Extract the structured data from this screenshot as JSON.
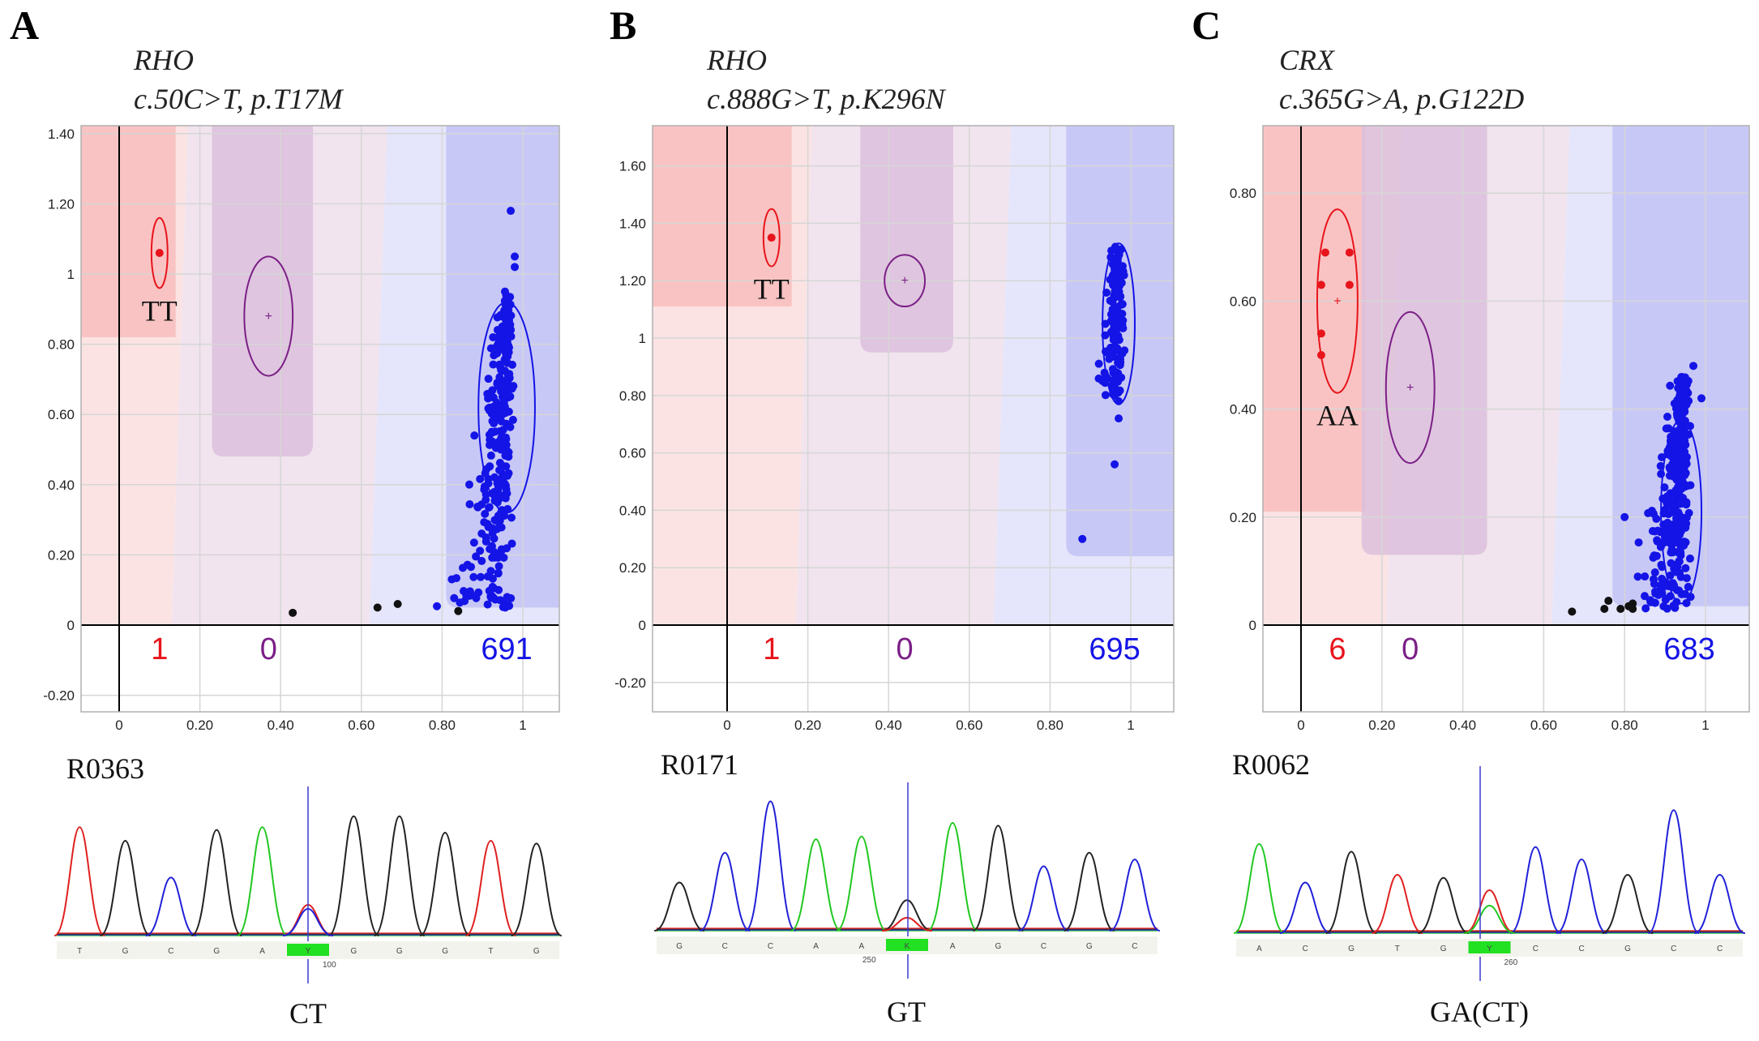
{
  "chart_data": [
    {
      "type": "scatter",
      "panel": "A",
      "gene": "RHO",
      "variant": "c.50C>T, p.T17M",
      "xlim": [
        -0.08,
        1.1
      ],
      "ylim": [
        -0.24,
        1.42
      ],
      "xticks": [
        "0",
        "0.20",
        "0.40",
        "0.60",
        "0.80",
        "1"
      ],
      "xtick_values": [
        0,
        0.2,
        0.4,
        0.6,
        0.8,
        1
      ],
      "yticks": [
        "-0.20",
        "0",
        "0.20",
        "0.40",
        "0.60",
        "0.80",
        "1",
        "1.20",
        "1.40"
      ],
      "ytick_values": [
        -0.2,
        0,
        0.2,
        0.4,
        0.6,
        0.8,
        1,
        1.2,
        1.4
      ],
      "grid": true,
      "clusters": [
        {
          "name": "hom-mutant",
          "label": "TT",
          "count": "1",
          "color": "#e8141b",
          "center": [
            0.1,
            1.06
          ],
          "ellipse_r": [
            0.02,
            0.1
          ]
        },
        {
          "name": "het",
          "label": "",
          "count": "0",
          "color": "#7b1f87",
          "center": [
            0.37,
            0.88
          ],
          "ellipse_r": [
            0.06,
            0.17
          ]
        },
        {
          "name": "hom-wild",
          "label": "",
          "count": "691",
          "color": "#1414e6",
          "center": [
            0.96,
            0.62
          ],
          "ellipse_r": [
            0.07,
            0.3
          ]
        }
      ],
      "regions": {
        "red_x_end": 0.14,
        "red_top_y": 0.82,
        "purple_x": [
          0.23,
          0.48
        ],
        "purple_bottom_y": 0.48,
        "blue_x_start": 0.81,
        "blue_bottom_y": 0.05,
        "boundary_1": 0.14,
        "boundary_2": 0.62
      },
      "undetermined_points": [
        [
          0.43,
          0.035
        ],
        [
          0.64,
          0.05
        ],
        [
          0.69,
          0.06
        ],
        [
          0.84,
          0.04
        ]
      ],
      "outlier_points": [
        [
          0.88,
          0.54
        ],
        [
          0.97,
          1.18
        ],
        [
          0.98,
          1.05
        ],
        [
          0.98,
          1.02
        ]
      ],
      "cluster_shape": {
        "x_center": 0.965,
        "y_min": 0.05,
        "y_max": 0.95,
        "spread_low": 0.12
      }
    },
    {
      "type": "scatter",
      "panel": "B",
      "gene": "RHO",
      "variant": "c.888G>T, p.K296N",
      "xlim": [
        -0.08,
        1.1
      ],
      "ylim": [
        -0.28,
        1.73
      ],
      "xticks": [
        "0",
        "0.20",
        "0.40",
        "0.60",
        "0.80",
        "1"
      ],
      "xtick_values": [
        0,
        0.2,
        0.4,
        0.6,
        0.8,
        1
      ],
      "yticks": [
        "-0.20",
        "0",
        "0.20",
        "0.40",
        "0.60",
        "0.80",
        "1",
        "1.20",
        "1.40",
        "1.60"
      ],
      "ytick_values": [
        -0.2,
        0,
        0.2,
        0.4,
        0.6,
        0.8,
        1,
        1.2,
        1.4,
        1.6
      ],
      "grid": true,
      "clusters": [
        {
          "name": "hom-mutant",
          "label": "TT",
          "count": "1",
          "color": "#e8141b",
          "center": [
            0.11,
            1.35
          ],
          "ellipse_r": [
            0.02,
            0.1
          ]
        },
        {
          "name": "het",
          "label": "",
          "count": "0",
          "color": "#7b1f87",
          "center": [
            0.44,
            1.2
          ],
          "ellipse_r": [
            0.05,
            0.09
          ]
        },
        {
          "name": "hom-wild",
          "label": "",
          "count": "695",
          "color": "#1414e6",
          "center": [
            0.97,
            1.05
          ],
          "ellipse_r": [
            0.04,
            0.28
          ]
        }
      ],
      "regions": {
        "red_x_end": 0.16,
        "red_top_y": 1.11,
        "purple_x": [
          0.33,
          0.56
        ],
        "purple_bottom_y": 0.95,
        "blue_x_start": 0.84,
        "blue_bottom_y": 0.24,
        "boundary_1": 0.18,
        "boundary_2": 0.66
      },
      "undetermined_points": [],
      "outlier_points": [
        [
          0.88,
          0.3
        ],
        [
          0.96,
          0.56
        ],
        [
          0.97,
          0.72
        ],
        [
          0.97,
          0.78
        ]
      ],
      "cluster_shape": {
        "x_center": 0.97,
        "y_min": 0.8,
        "y_max": 1.32,
        "spread_low": 0.02
      }
    },
    {
      "type": "scatter",
      "panel": "C",
      "gene": "CRX",
      "variant": "c.365G>A, p.G122D",
      "xlim": [
        -0.09,
        1.11
      ],
      "ylim": [
        -0.16,
        0.92
      ],
      "xticks": [
        "0",
        "0.20",
        "0.40",
        "0.60",
        "0.80",
        "1"
      ],
      "xtick_values": [
        0,
        0.2,
        0.4,
        0.6,
        0.8,
        1
      ],
      "yticks": [
        "0",
        "0.20",
        "0.40",
        "0.60",
        "0.80"
      ],
      "ytick_values": [
        0,
        0.2,
        0.4,
        0.6,
        0.8
      ],
      "grid": true,
      "clusters": [
        {
          "name": "hom-mutant",
          "label": "AA",
          "count": "6",
          "color": "#e8141b",
          "center": [
            0.09,
            0.6
          ],
          "ellipse_r": [
            0.05,
            0.17
          ]
        },
        {
          "name": "het",
          "label": "",
          "count": "0",
          "color": "#7b1f87",
          "center": [
            0.27,
            0.44
          ],
          "ellipse_r": [
            0.06,
            0.14
          ]
        },
        {
          "name": "hom-wild",
          "label": "",
          "count": "683",
          "color": "#1414e6",
          "center": [
            0.94,
            0.21
          ],
          "ellipse_r": [
            0.05,
            0.17
          ]
        }
      ],
      "regions": {
        "red_x_end": 0.16,
        "red_top_y": 0.21,
        "purple_x": [
          0.15,
          0.46
        ],
        "purple_bottom_y": 0.13,
        "blue_x_start": 0.77,
        "blue_bottom_y": 0.035,
        "boundary_1": 0.22,
        "boundary_2": 0.62
      },
      "red_points": [
        [
          0.06,
          0.69
        ],
        [
          0.12,
          0.69
        ],
        [
          0.05,
          0.63
        ],
        [
          0.12,
          0.63
        ],
        [
          0.05,
          0.54
        ],
        [
          0.05,
          0.5
        ]
      ],
      "undetermined_points": [
        [
          0.67,
          0.025
        ],
        [
          0.75,
          0.03
        ],
        [
          0.76,
          0.045
        ],
        [
          0.79,
          0.03
        ],
        [
          0.81,
          0.035
        ],
        [
          0.82,
          0.03
        ],
        [
          0.82,
          0.04
        ]
      ],
      "outlier_points": [
        [
          0.8,
          0.2
        ],
        [
          0.97,
          0.48
        ],
        [
          0.99,
          0.42
        ],
        [
          0.85,
          0.09
        ]
      ],
      "cluster_shape": {
        "x_center": 0.95,
        "y_min": 0.03,
        "y_max": 0.46,
        "spread_low": 0.1
      }
    }
  ],
  "chromatograms": [
    {
      "sample": "R0363",
      "call": "CT",
      "bases": [
        "T",
        "G",
        "C",
        "G",
        "A",
        "Y",
        "G",
        "G",
        "G",
        "T",
        "G"
      ],
      "highlight_index": 5,
      "position_label": "100",
      "highlight_color": "#22e022"
    },
    {
      "sample": "R0171",
      "call": "GT",
      "bases": [
        "G",
        "C",
        "C",
        "A",
        "A",
        "K",
        "A",
        "G",
        "C",
        "G",
        "C"
      ],
      "highlight_index": 5,
      "position_label": "250",
      "highlight_color": "#22e022"
    },
    {
      "sample": "R0062",
      "call": "GA(CT)",
      "bases": [
        "A",
        "C",
        "G",
        "T",
        "G",
        "Y",
        "C",
        "C",
        "G",
        "C",
        "C"
      ],
      "highlight_index": 5,
      "position_label": "260",
      "highlight_color": "#22e022"
    }
  ],
  "colors": {
    "red": "#e8141b",
    "purple": "#7b1f87",
    "blue": "#1414e6",
    "black": "#111111",
    "trace_a": "#22c722",
    "trace_c": "#2020d8",
    "trace_g": "#222222",
    "trace_t": "#e02020"
  }
}
